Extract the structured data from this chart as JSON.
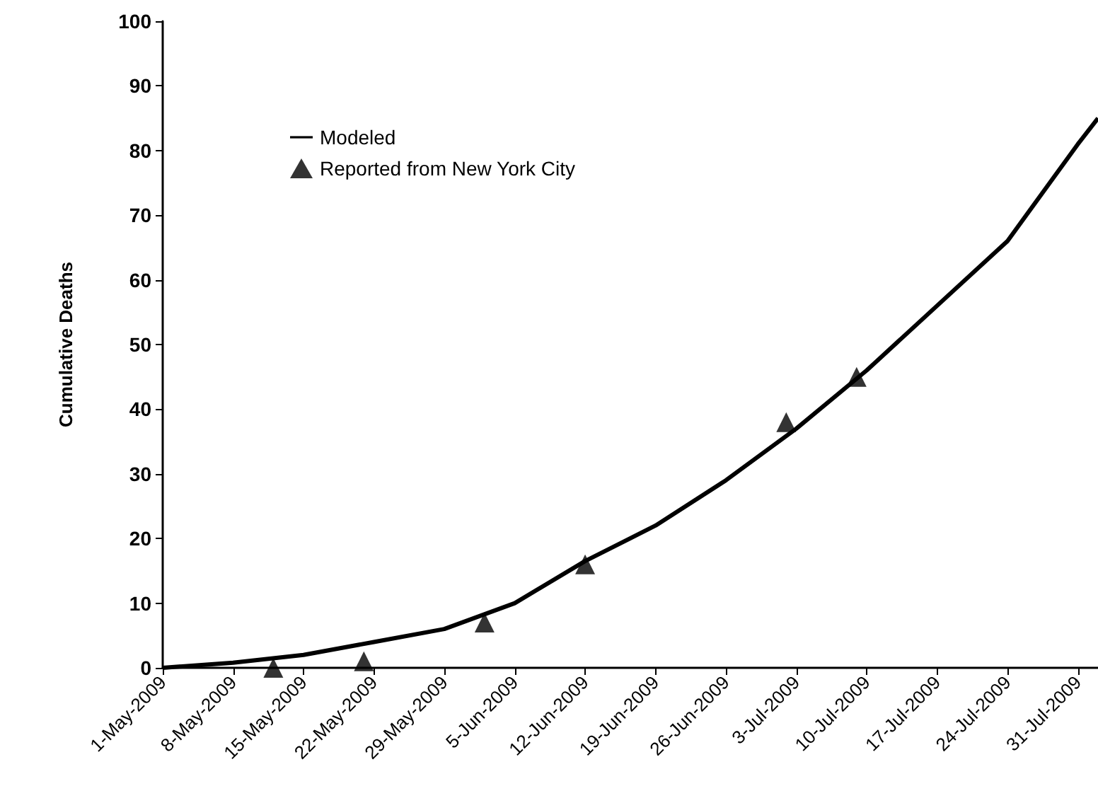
{
  "chart_data": {
    "type": "line",
    "ylabel": "Cumulative Deaths",
    "xlim": [
      "2009-05-01",
      "2009-08-02"
    ],
    "ylim": [
      0,
      100
    ],
    "yticks": [
      0,
      10,
      20,
      30,
      40,
      50,
      60,
      70,
      80,
      90,
      100
    ],
    "xticks": [
      {
        "value": "2009-05-01",
        "label": "1-May-2009"
      },
      {
        "value": "2009-05-08",
        "label": "8-May-2009"
      },
      {
        "value": "2009-05-15",
        "label": "15-May-2009"
      },
      {
        "value": "2009-05-22",
        "label": "22-May-2009"
      },
      {
        "value": "2009-05-29",
        "label": "29-May-2009"
      },
      {
        "value": "2009-06-05",
        "label": "5-Jun-2009"
      },
      {
        "value": "2009-06-12",
        "label": "12-Jun-2009"
      },
      {
        "value": "2009-06-19",
        "label": "19-Jun-2009"
      },
      {
        "value": "2009-06-26",
        "label": "26-Jun-2009"
      },
      {
        "value": "2009-07-03",
        "label": "3-Jul-2009"
      },
      {
        "value": "2009-07-10",
        "label": "10-Jul-2009"
      },
      {
        "value": "2009-07-17",
        "label": "17-Jul-2009"
      },
      {
        "value": "2009-07-24",
        "label": "24-Jul-2009"
      },
      {
        "value": "2009-07-31",
        "label": "31-Jul-2009"
      }
    ],
    "grid": false,
    "legend": "top left",
    "series": [
      {
        "name": "Modeled",
        "color": "#000000",
        "marker": "none",
        "line_style": "solid",
        "x": [
          "2009-05-01",
          "2009-05-08",
          "2009-05-15",
          "2009-05-22",
          "2009-05-29",
          "2009-06-05",
          "2009-06-12",
          "2009-06-19",
          "2009-06-26",
          "2009-07-03",
          "2009-07-10",
          "2009-07-17",
          "2009-07-24",
          "2009-07-31",
          "2009-08-02"
        ],
        "values": [
          0,
          0.8,
          2,
          4,
          6,
          10,
          16.5,
          22,
          29,
          37,
          46,
          56,
          66,
          81,
          85
        ]
      },
      {
        "name": "Reported from New York City",
        "type": "scatter",
        "color": "#000000",
        "marker": "triangle",
        "x": [
          "2009-05-12",
          "2009-05-21",
          "2009-06-02",
          "2009-06-12",
          "2009-07-02",
          "2009-07-09"
        ],
        "values": [
          0,
          1,
          7,
          16,
          38,
          45
        ]
      }
    ]
  }
}
